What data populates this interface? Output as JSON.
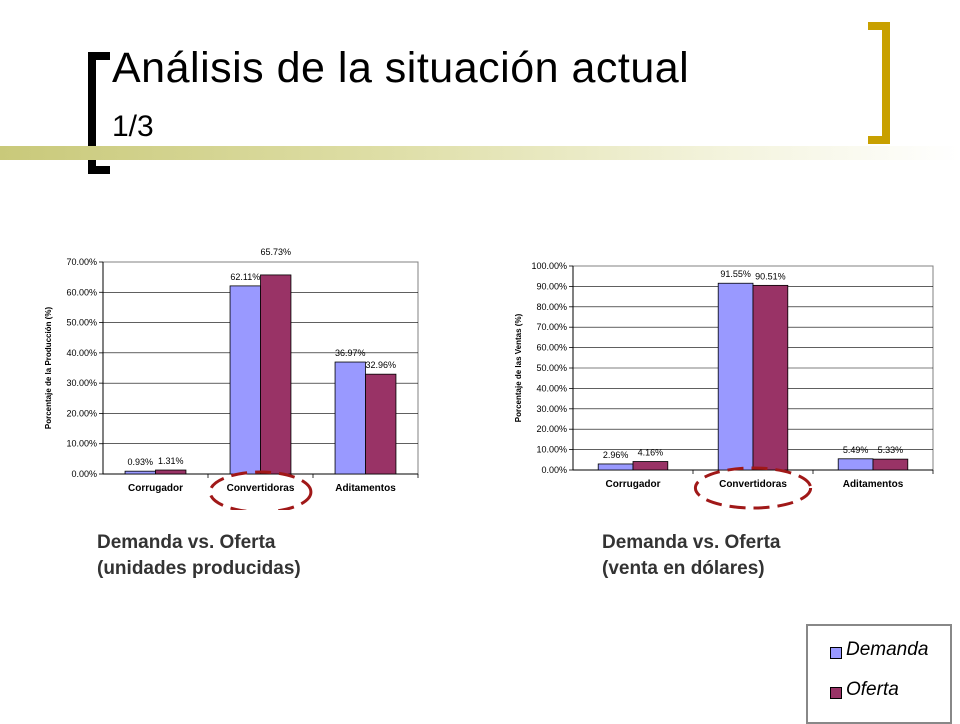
{
  "slide": {
    "title": "Análisis de la situación actual",
    "subtitle": "1/3"
  },
  "captions": {
    "left_line1": "Demanda vs. Oferta",
    "left_line2": "(unidades producidas)",
    "right_line1": "Demanda vs. Oferta",
    "right_line2": "(venta en dólares)"
  },
  "legend": {
    "demanda": "Demanda",
    "oferta": "Oferta"
  },
  "colors": {
    "demanda": "#9999ff",
    "oferta": "#993366",
    "highlight_ellipse": "#a01818",
    "bracket_left": "#000000",
    "bracket_right": "#c8a000"
  },
  "chart_data": [
    {
      "type": "bar",
      "categories": [
        "Corrugador",
        "Convertidoras",
        "Aditamentos"
      ],
      "series": [
        {
          "name": "Demanda",
          "values": [
            0.93,
            62.11,
            36.97
          ]
        },
        {
          "name": "Oferta",
          "values": [
            1.31,
            65.73,
            32.96
          ]
        }
      ],
      "value_labels": [
        [
          "0.93%",
          "62.11%",
          "36.97%"
        ],
        [
          "1.31%",
          "65.73%",
          "32.96%"
        ]
      ],
      "ylabel": "Porcentaje de la Producción (%)",
      "ylim": [
        0,
        70
      ],
      "yticks": [
        "0.00%",
        "10.00%",
        "20.00%",
        "30.00%",
        "40.00%",
        "50.00%",
        "60.00%",
        "70.00%"
      ],
      "highlight_category": "Convertidoras",
      "grid": true
    },
    {
      "type": "bar",
      "categories": [
        "Corrugador",
        "Convertidoras",
        "Aditamentos"
      ],
      "series": [
        {
          "name": "Demanda",
          "values": [
            2.96,
            91.55,
            5.49
          ]
        },
        {
          "name": "Oferta",
          "values": [
            4.16,
            90.51,
            5.33
          ]
        }
      ],
      "value_labels": [
        [
          "2.96%",
          "91.55%",
          "5.49%"
        ],
        [
          "4.16%",
          "90.51%",
          "5.33%"
        ]
      ],
      "ylabel": "Porcentaje de las Ventas (%)",
      "ylim": [
        0,
        100
      ],
      "yticks": [
        "0.00%",
        "10.00%",
        "20.00%",
        "30.00%",
        "40.00%",
        "50.00%",
        "60.00%",
        "70.00%",
        "80.00%",
        "90.00%",
        "100.00%"
      ],
      "highlight_category": "Convertidoras",
      "grid": true
    }
  ]
}
